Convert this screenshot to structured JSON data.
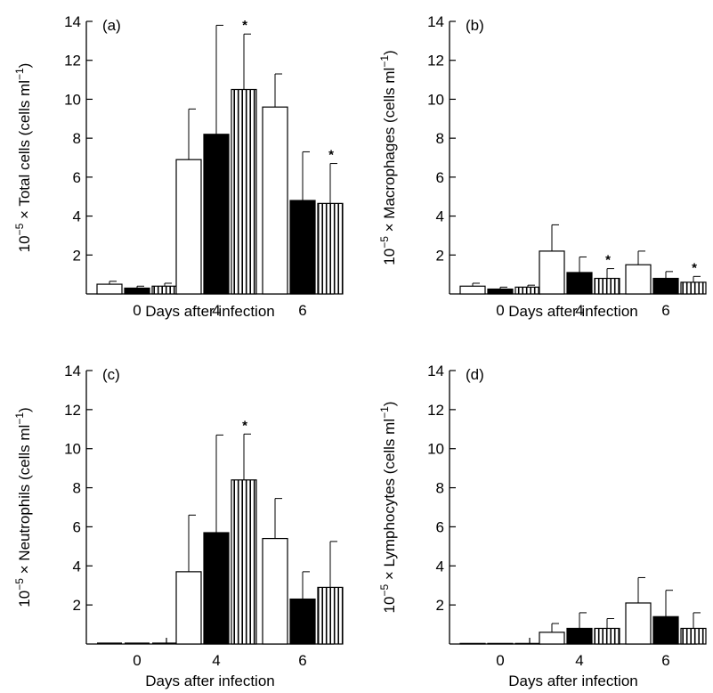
{
  "chart_data": [
    {
      "type": "bar",
      "panel": "(a)",
      "ylabel_prefix": "10",
      "ylabel_exp": "−5",
      "ylabel_middle": " × Total cells (cells ml",
      "ylabel_unit_exp": "−1",
      "ylabel_suffix": ")",
      "xlabel": "Days after infection",
      "categories": [
        "0",
        "4",
        "6"
      ],
      "ylim": [
        0,
        14
      ],
      "yticks": [
        "2",
        "4",
        "6",
        "8",
        "10",
        "12",
        "14"
      ],
      "series": [
        {
          "fill": "open",
          "values": [
            0.5,
            6.9,
            9.6
          ],
          "errors": [
            0.15,
            2.6,
            1.7
          ]
        },
        {
          "fill": "solid",
          "values": [
            0.3,
            8.2,
            4.8
          ],
          "errors": [
            0.1,
            5.6,
            2.5
          ]
        },
        {
          "fill": "striped",
          "values": [
            0.4,
            10.5,
            4.65
          ],
          "errors": [
            0.15,
            2.85,
            2.05
          ]
        }
      ],
      "significance": [
        [
          false,
          false,
          false
        ],
        [
          false,
          false,
          true
        ],
        [
          false,
          false,
          true
        ]
      ]
    },
    {
      "type": "bar",
      "panel": "(b)",
      "ylabel_prefix": "10",
      "ylabel_exp": "−5",
      "ylabel_middle": " × Macrophages (cells ml",
      "ylabel_unit_exp": "−1",
      "ylabel_suffix": ")",
      "xlabel": "Days after infection",
      "categories": [
        "0",
        "4",
        "6"
      ],
      "ylim": [
        0,
        14
      ],
      "yticks": [
        "2",
        "4",
        "6",
        "8",
        "10",
        "12",
        "14"
      ],
      "series": [
        {
          "fill": "open",
          "values": [
            0.4,
            2.2,
            1.5
          ],
          "errors": [
            0.15,
            1.35,
            0.7
          ]
        },
        {
          "fill": "solid",
          "values": [
            0.25,
            1.1,
            0.8
          ],
          "errors": [
            0.1,
            0.8,
            0.35
          ]
        },
        {
          "fill": "striped",
          "values": [
            0.35,
            0.8,
            0.6
          ],
          "errors": [
            0.1,
            0.5,
            0.3
          ]
        }
      ],
      "significance": [
        [
          false,
          false,
          false
        ],
        [
          false,
          false,
          true
        ],
        [
          false,
          false,
          true
        ]
      ]
    },
    {
      "type": "bar",
      "panel": "(c)",
      "ylabel_prefix": "10",
      "ylabel_exp": "−5",
      "ylabel_middle": " × Neutrophils (cells ml",
      "ylabel_unit_exp": "−1",
      "ylabel_suffix": ")",
      "xlabel": "Days after infection",
      "categories": [
        "0",
        "4",
        "6"
      ],
      "ylim": [
        0,
        14
      ],
      "yticks": [
        "2",
        "4",
        "6",
        "8",
        "10",
        "12",
        "14"
      ],
      "series": [
        {
          "fill": "open",
          "values": [
            0,
            3.7,
            5.4
          ],
          "errors": [
            0,
            2.9,
            2.05
          ]
        },
        {
          "fill": "solid",
          "values": [
            0,
            5.7,
            2.3
          ],
          "errors": [
            0,
            5.0,
            1.4
          ]
        },
        {
          "fill": "striped",
          "values": [
            0,
            8.4,
            2.9
          ],
          "errors": [
            0,
            2.35,
            2.35
          ]
        }
      ],
      "significance": [
        [
          false,
          false,
          false
        ],
        [
          false,
          false,
          true
        ],
        [
          false,
          false,
          false
        ]
      ]
    },
    {
      "type": "bar",
      "panel": "(d)",
      "ylabel_prefix": "10",
      "ylabel_exp": "−5",
      "ylabel_middle": " × Lymphocytes (cells ml",
      "ylabel_unit_exp": "−1",
      "ylabel_suffix": ")",
      "xlabel": "Days after infection",
      "categories": [
        "0",
        "4",
        "6"
      ],
      "ylim": [
        0,
        14
      ],
      "yticks": [
        "2",
        "4",
        "6",
        "8",
        "10",
        "12",
        "14"
      ],
      "series": [
        {
          "fill": "open",
          "values": [
            0.03,
            0.6,
            2.1
          ],
          "errors": [
            0,
            0.45,
            1.3
          ]
        },
        {
          "fill": "solid",
          "values": [
            0.03,
            0.8,
            1.4
          ],
          "errors": [
            0,
            0.8,
            1.35
          ]
        },
        {
          "fill": "striped",
          "values": [
            0.03,
            0.8,
            0.8
          ],
          "errors": [
            0,
            0.5,
            0.8
          ]
        }
      ],
      "significance": [
        [
          false,
          false,
          false
        ],
        [
          false,
          false,
          false
        ],
        [
          false,
          false,
          false
        ]
      ]
    }
  ],
  "significance_marker": "*"
}
